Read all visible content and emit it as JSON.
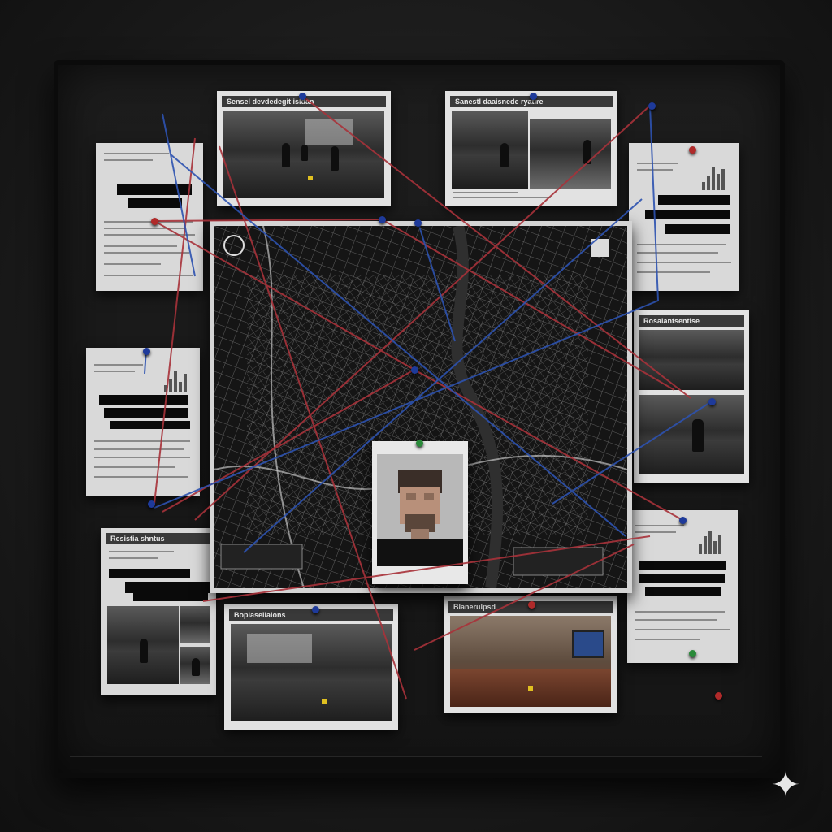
{
  "scene": {
    "subject": "",
    "background_color": "#1c1c1c",
    "string_colors": {
      "red": "#a8323a",
      "blue": "#2d52b0"
    },
    "pin_colors": [
      "#1e3a9a",
      "#b02a2a",
      "#2a8a3a",
      "#d8b020"
    ]
  },
  "cards": {
    "top_left_photo_title": "Sensel devdedegit isldan",
    "top_right_photo_title": "Sanestl daaisnede ryatire",
    "right_photo_title": "Rosalantsentise",
    "bottom_left_title": "Resistia shntus",
    "bottom_middle_title": "Boplaselialons",
    "bottom_right_title": "Blanerulpsd"
  },
  "map": {
    "style": "dark street map"
  },
  "suspect_photo": {
    "state": "pixelated"
  },
  "watermark_icon": "sparkle-icon"
}
